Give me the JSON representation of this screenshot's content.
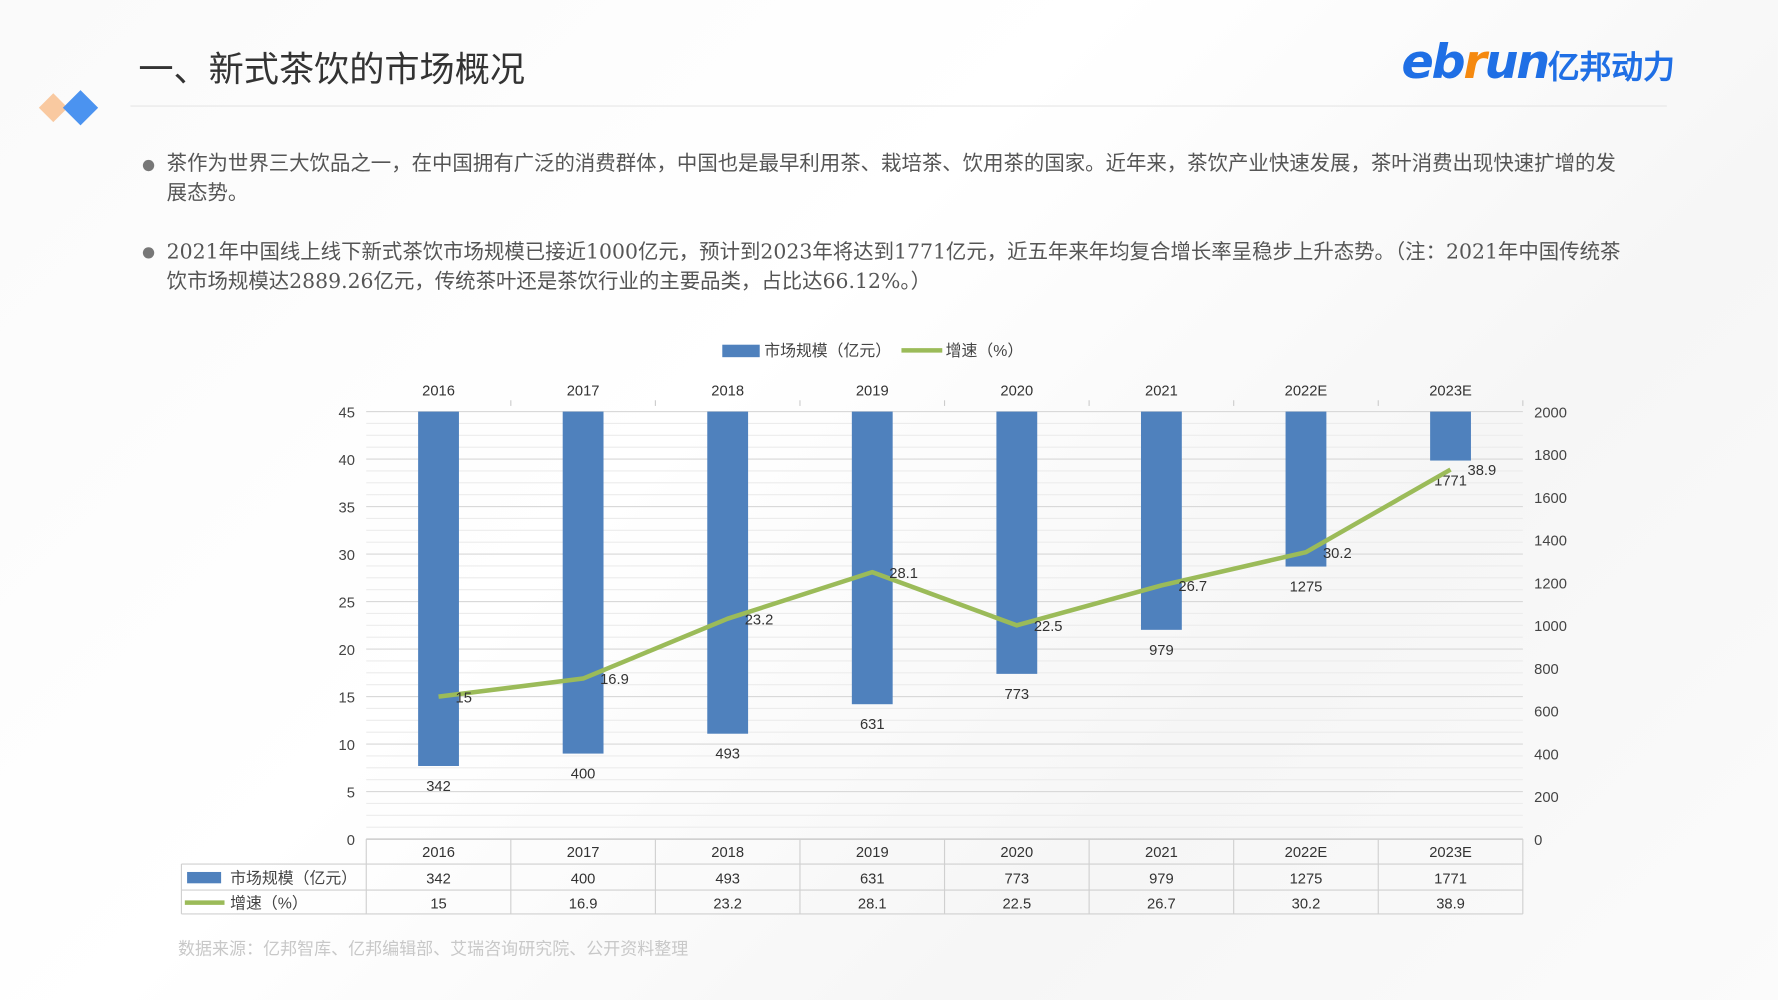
{
  "header": {
    "title": "一、新式茶饮的市场概况",
    "logo_text": "ebrun亿邦动力"
  },
  "bullets": [
    "茶作为世界三大饮品之一，在中国拥有广泛的消费群体，中国也是最早利用茶、栽培茶、饮用茶的国家。近年来，茶饮产业快速发展，茶叶消费出现快速扩增的发展态势。",
    "2021年中国线上线下新式茶饮市场规模已接近1000亿元，预计到2023年将达到1771亿元，近五年来年均复合增长率呈稳步上升态势。（注：2021年中国传统茶饮市场规模达2889.26亿元，传统茶叶还是茶饮行业的主要品类，占比达66.12%。）"
  ],
  "source": "数据来源：亿邦智库、亿邦编辑部、艾瑞咨询研究院、公开资料整理",
  "colors": {
    "bar": "#4F81BD",
    "line": "#9BBB59",
    "logo_blue": "#1f6fe5",
    "logo_orange": "#f5890f"
  },
  "chart_data": {
    "type": "bar+line",
    "categories": [
      "2016",
      "2017",
      "2018",
      "2019",
      "2020",
      "2021",
      "2022E",
      "2023E"
    ],
    "series": [
      {
        "name": "市场规模（亿元）",
        "type": "bar",
        "axis": "right",
        "values": [
          342,
          400,
          493,
          631,
          773,
          979,
          1275,
          1771
        ]
      },
      {
        "name": "增速（%）",
        "type": "line",
        "axis": "left",
        "values": [
          15,
          16.9,
          23.2,
          28.1,
          22.5,
          26.7,
          30.2,
          38.9
        ]
      }
    ],
    "left_axis": {
      "range": [
        0,
        45
      ],
      "ticks": [
        0,
        5,
        10,
        15,
        20,
        25,
        30,
        35,
        40,
        45
      ]
    },
    "right_axis": {
      "range": [
        0,
        2000
      ],
      "ticks": [
        0,
        200,
        400,
        600,
        800,
        1000,
        1200,
        1400,
        1600,
        1800,
        2000
      ],
      "reversed_bar_origin": "top"
    },
    "legend": "top",
    "grid": true,
    "data_table": true
  }
}
